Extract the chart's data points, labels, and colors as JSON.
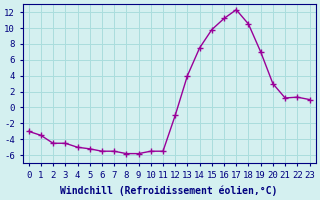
{
  "hours": [
    0,
    1,
    2,
    3,
    4,
    5,
    6,
    7,
    8,
    9,
    10,
    11,
    12,
    13,
    14,
    15,
    16,
    17,
    18,
    19,
    20,
    21,
    22,
    23
  ],
  "values": [
    -3.0,
    -3.5,
    -4.5,
    -4.5,
    -5.0,
    -5.2,
    -5.5,
    -5.5,
    -5.8,
    -5.8,
    -5.5,
    -5.5,
    -1.0,
    4.0,
    7.5,
    9.8,
    11.2,
    12.3,
    10.5,
    7.0,
    3.0,
    1.2,
    1.3,
    1.0
  ],
  "line_color": "#990099",
  "marker": "+",
  "bg_color": "#d4f0f0",
  "grid_color": "#aadddd",
  "xlabel": "Windchill (Refroidissement éolien,°C)",
  "ylim": [
    -7,
    13
  ],
  "yticks": [
    -6,
    -4,
    -2,
    0,
    2,
    4,
    6,
    8,
    10,
    12
  ],
  "xticks": [
    0,
    1,
    2,
    3,
    4,
    5,
    6,
    7,
    8,
    9,
    10,
    11,
    12,
    13,
    14,
    15,
    16,
    17,
    18,
    19,
    20,
    21,
    22,
    23
  ],
  "axis_color": "#000080",
  "label_fontsize": 7,
  "tick_fontsize": 6.5
}
